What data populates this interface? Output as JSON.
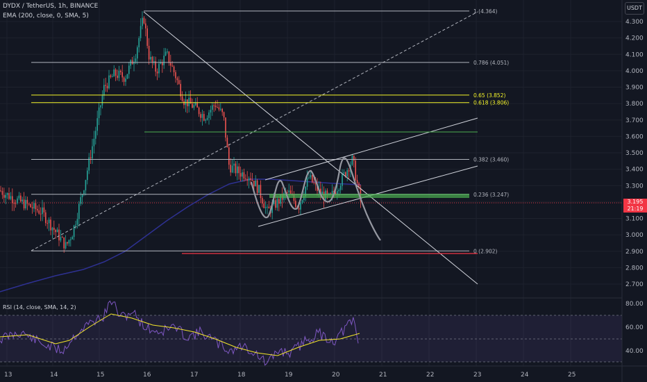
{
  "header": {
    "symbol_line": "DYDX / TetherUS, 1h, BINANCE",
    "indicator_line": "EMA (200, close, 0, SMA, 5)"
  },
  "currency_button": "USDT",
  "price_axis": {
    "ticks": [
      "4.300",
      "4.200",
      "4.100",
      "4.000",
      "3.900",
      "3.800",
      "3.700",
      "3.600",
      "3.500",
      "3.400",
      "3.300",
      "3.200",
      "3.100",
      "3.000",
      "2.900",
      "2.800",
      "2.700"
    ],
    "current_price": "3.195",
    "countdown": "21:19"
  },
  "time_axis": {
    "ticks": [
      "13",
      "14",
      "15",
      "16",
      "17",
      "18",
      "19",
      "20",
      "21",
      "22",
      "23",
      "24",
      "25"
    ]
  },
  "fib_levels": [
    {
      "label": "1 (4.364)",
      "price": 4.364,
      "color": "#b2b5be"
    },
    {
      "label": "0.786 (4.051)",
      "price": 4.051,
      "color": "#b2b5be"
    },
    {
      "label": "0.65 (3.852)",
      "price": 3.852,
      "color": "#f5f52a"
    },
    {
      "label": "0.618 (3.806)",
      "price": 3.806,
      "color": "#f5f52a"
    },
    {
      "label": "0.382 (3.460)",
      "price": 3.46,
      "color": "#b2b5be"
    },
    {
      "label": "0.236 (3.247)",
      "price": 3.247,
      "color": "#b2b5be"
    },
    {
      "label": "0 (2.902)",
      "price": 2.902,
      "color": "#b2b5be"
    }
  ],
  "rsi": {
    "label": "RSI (14, close, SMA, 14, 2)",
    "ticks": [
      "80.00",
      "60.00",
      "40.00"
    ]
  },
  "colors": {
    "background": "#131722",
    "up_candle": "#26a69a",
    "down_candle": "#ef5350",
    "ema": "#2e3192",
    "rsi_line": "#7e57c2",
    "rsi_ma": "#f5e72a",
    "support_zone": "#4caf50",
    "red_level": "#f23645"
  }
}
